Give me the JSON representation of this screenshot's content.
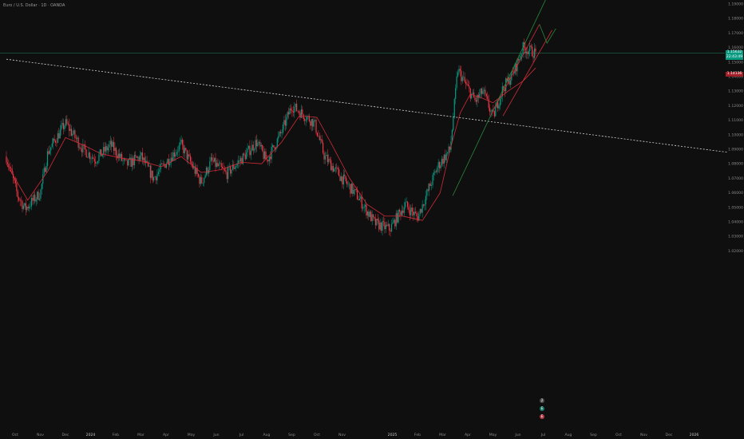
{
  "symbol": {
    "title": "Euro / U.S. Dollar · 1D · OANDA"
  },
  "price_tags": [
    {
      "label": "1.15632",
      "sub": "22:43:49",
      "color": "#089981",
      "value": 1.1563
    },
    {
      "label": "1.14136",
      "color": "#a01f28",
      "value": 1.1414
    }
  ],
  "badges": [
    {
      "label": "2",
      "color": "#505050"
    },
    {
      "label": "E",
      "color": "#1e7a68"
    },
    {
      "label": "E",
      "color": "#b23a48"
    }
  ],
  "colors": {
    "background": "#0f0f0f",
    "up": "#089981",
    "down": "#f23645",
    "moving_average": "#d12b38",
    "trendline": "#d8d8d8",
    "uptrend": "#2a8a3c",
    "channel": "#d12b38",
    "current_price_line": "#1f6b55",
    "axis_text": "#8a8a8a"
  },
  "chart_data": {
    "type": "candlestick",
    "title": "Euro / U.S. Dollar · 1D · OANDA",
    "y_range": [
      1.015,
      1.195
    ],
    "y_ticks": [
      "1.02000",
      "1.03000",
      "1.04000",
      "1.05000",
      "1.06000",
      "1.07000",
      "1.08000",
      "1.09000",
      "1.10000",
      "1.11000",
      "1.12000",
      "1.13000",
      "1.14000",
      "1.15000",
      "1.16000",
      "1.17000",
      "1.18000",
      "1.19000"
    ],
    "y_tick_values": [
      1.02,
      1.03,
      1.04,
      1.05,
      1.06,
      1.07,
      1.08,
      1.09,
      1.1,
      1.11,
      1.12,
      1.13,
      1.14,
      1.15,
      1.16,
      1.17,
      1.18,
      1.19
    ],
    "x_ticks": [
      "Oct",
      "Nov",
      "Dec",
      "2024",
      "Feb",
      "Mar",
      "Apr",
      "May",
      "Jun",
      "Jul",
      "Aug",
      "Sep",
      "Oct",
      "Nov",
      "2025",
      "Feb",
      "Mar",
      "Apr",
      "May",
      "Jun",
      "Jul",
      "Aug",
      "Sep",
      "Oct",
      "Nov",
      "Dec",
      "2026"
    ],
    "x_tick_months": [
      0,
      1,
      2,
      3,
      4,
      5,
      6,
      7,
      8,
      9,
      10,
      11,
      12,
      13,
      15,
      16,
      17,
      18,
      19,
      20,
      21,
      22,
      23,
      24,
      25,
      26,
      27
    ],
    "price_path": {
      "months": [
        -0.35,
        0.1,
        0.4,
        1.0,
        1.3,
        2.0,
        2.7,
        3.2,
        3.8,
        4.4,
        5.0,
        5.5,
        6.0,
        6.6,
        7.4,
        7.8,
        8.4,
        9.1,
        9.6,
        10.0,
        10.6,
        11.0,
        11.9,
        12.3,
        12.9,
        13.6,
        14.3,
        14.9,
        15.5,
        16.0,
        16.8,
        17.3,
        17.6,
        17.9,
        18.3,
        18.6,
        19.0,
        19.4,
        19.8,
        20.2,
        20.7
      ],
      "prices": [
        1.085,
        1.058,
        1.049,
        1.06,
        1.088,
        1.108,
        1.09,
        1.083,
        1.093,
        1.079,
        1.085,
        1.07,
        1.081,
        1.093,
        1.067,
        1.082,
        1.073,
        1.085,
        1.095,
        1.082,
        1.102,
        1.12,
        1.108,
        1.085,
        1.072,
        1.058,
        1.039,
        1.035,
        1.052,
        1.043,
        1.078,
        1.09,
        1.145,
        1.135,
        1.123,
        1.13,
        1.112,
        1.132,
        1.142,
        1.16,
        1.156
      ]
    },
    "moving_average": {
      "months": [
        -0.35,
        0.5,
        1.3,
        2.0,
        2.7,
        3.4,
        4.2,
        5.0,
        5.8,
        6.6,
        7.4,
        8.2,
        9.0,
        9.8,
        10.6,
        11.3,
        12.0,
        12.6,
        13.3,
        14.0,
        14.7,
        15.4,
        16.2,
        16.9,
        17.3,
        17.7,
        18.1,
        18.6,
        19.0,
        19.6,
        20.2,
        20.7
      ],
      "prices": [
        1.08,
        1.055,
        1.075,
        1.098,
        1.093,
        1.087,
        1.084,
        1.082,
        1.078,
        1.085,
        1.074,
        1.076,
        1.081,
        1.08,
        1.095,
        1.113,
        1.112,
        1.093,
        1.07,
        1.052,
        1.044,
        1.044,
        1.041,
        1.06,
        1.09,
        1.115,
        1.128,
        1.125,
        1.122,
        1.13,
        1.137,
        1.146
      ]
    },
    "annotations": {
      "long_trendline": {
        "from": [
          -0.35,
          1.152
        ],
        "to": [
          28.3,
          1.088
        ]
      },
      "uptrend_line": {
        "from": [
          17.4,
          1.058
        ],
        "to": [
          21.15,
          1.195
        ]
      },
      "channel_upper": {
        "from": [
          18.9,
          1.113
        ],
        "to": [
          20.85,
          1.176
        ]
      },
      "channel_lower": {
        "from": [
          19.4,
          1.113
        ],
        "to": [
          21.35,
          1.172
        ]
      },
      "projection": {
        "points": [
          [
            20.85,
            1.176
          ],
          [
            21.15,
            1.163
          ],
          [
            21.5,
            1.173
          ]
        ]
      }
    }
  }
}
